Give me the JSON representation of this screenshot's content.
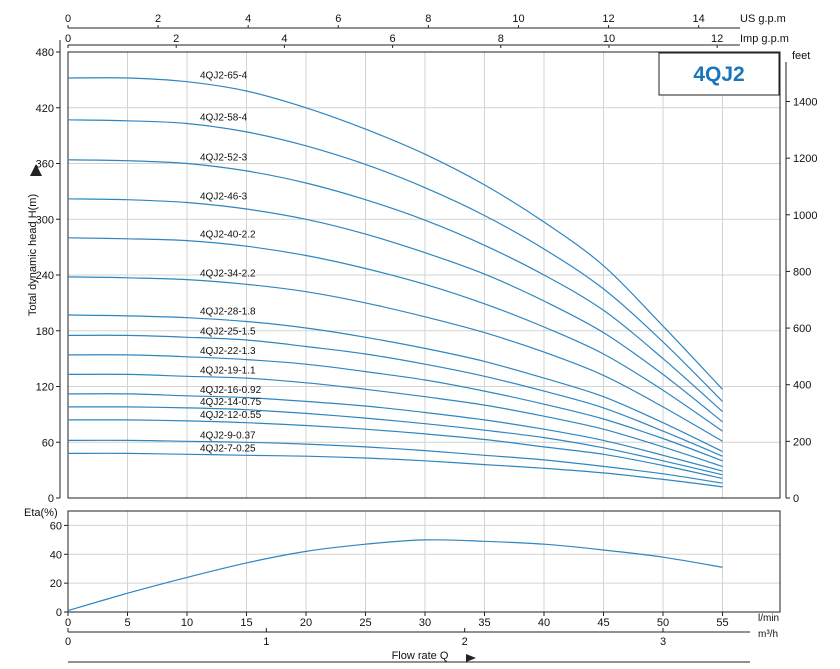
{
  "chart_data": [
    {
      "type": "line",
      "title": "4QJ2",
      "ylabel": "Total dynamic head H(m)",
      "ylabel_right": "feet",
      "xlabel": "Flow rate Q",
      "x_unit_lpm": "l/min",
      "x_unit_m3h": "m³/h",
      "x_unit_usgpm": "US g.p.m",
      "x_unit_impgpm": "Imp g.p.m",
      "xlim": [
        0,
        60
      ],
      "ylim": [
        0,
        480
      ],
      "y_ticks": [
        0,
        60,
        120,
        180,
        240,
        300,
        360,
        420,
        480
      ],
      "y_ticks_feet": [
        0,
        200,
        400,
        600,
        800,
        1000,
        1200,
        1400
      ],
      "x_ticks_lpm": [
        0,
        5,
        10,
        15,
        20,
        25,
        30,
        35,
        40,
        45,
        50,
        55
      ],
      "x_ticks_m3h": [
        0,
        1,
        2,
        3
      ],
      "x_ticks_usgpm": [
        0,
        2,
        4,
        6,
        8,
        10,
        12,
        14
      ],
      "x_ticks_impgpm": [
        0,
        2,
        4,
        6,
        8,
        10,
        12
      ],
      "grid": true,
      "series": [
        {
          "name": "4QJ2-65-4",
          "x": [
            0,
            5,
            10,
            15,
            20,
            25,
            30,
            35,
            40,
            45,
            50,
            55
          ],
          "values": [
            452,
            452,
            448,
            438,
            420,
            397,
            370,
            337,
            297,
            250,
            185,
            117
          ]
        },
        {
          "name": "4QJ2-58-4",
          "x": [
            0,
            5,
            10,
            15,
            20,
            25,
            30,
            35,
            40,
            45,
            50,
            55
          ],
          "values": [
            407,
            406,
            403,
            394,
            379,
            359,
            334,
            304,
            268,
            225,
            168,
            104
          ]
        },
        {
          "name": "4QJ2-52-3",
          "x": [
            0,
            5,
            10,
            15,
            20,
            25,
            30,
            35,
            40,
            45,
            50,
            55
          ],
          "values": [
            364,
            363,
            360,
            352,
            339,
            321,
            299,
            272,
            240,
            202,
            150,
            93
          ]
        },
        {
          "name": "4QJ2-46-3",
          "x": [
            0,
            5,
            10,
            15,
            20,
            25,
            30,
            35,
            40,
            45,
            50,
            55
          ],
          "values": [
            322,
            321,
            318,
            311,
            300,
            284,
            264,
            241,
            212,
            178,
            133,
            82
          ]
        },
        {
          "name": "4QJ2-40-2.2",
          "x": [
            0,
            5,
            10,
            15,
            20,
            25,
            30,
            35,
            40,
            45,
            50,
            55
          ],
          "values": [
            280,
            279,
            277,
            271,
            261,
            247,
            230,
            209,
            184,
            155,
            116,
            72
          ]
        },
        {
          "name": "4QJ2-34-2.2",
          "x": [
            0,
            5,
            10,
            15,
            20,
            25,
            30,
            35,
            40,
            45,
            50,
            55
          ],
          "values": [
            238,
            237,
            235,
            230,
            222,
            210,
            195,
            178,
            157,
            132,
            98,
            61
          ]
        },
        {
          "name": "4QJ2-28-1.8",
          "x": [
            0,
            5,
            10,
            15,
            20,
            25,
            30,
            35,
            40,
            45,
            50,
            55
          ],
          "values": [
            197,
            196,
            194,
            190,
            183,
            173,
            161,
            147,
            129,
            109,
            81,
            50
          ]
        },
        {
          "name": "4QJ2-25-1.5",
          "x": [
            0,
            5,
            10,
            15,
            20,
            25,
            30,
            35,
            40,
            45,
            50,
            55
          ],
          "values": [
            175,
            175,
            173,
            170,
            163,
            155,
            144,
            131,
            115,
            97,
            72,
            45
          ]
        },
        {
          "name": "4QJ2-22-1.3",
          "x": [
            0,
            5,
            10,
            15,
            20,
            25,
            30,
            35,
            40,
            45,
            50,
            55
          ],
          "values": [
            154,
            154,
            152,
            149,
            144,
            136,
            127,
            115,
            101,
            85,
            64,
            40
          ]
        },
        {
          "name": "4QJ2-19-1.1",
          "x": [
            0,
            5,
            10,
            15,
            20,
            25,
            30,
            35,
            40,
            45,
            50,
            55
          ],
          "values": [
            133,
            133,
            131,
            129,
            124,
            117,
            109,
            100,
            88,
            74,
            55,
            34
          ]
        },
        {
          "name": "4QJ2-16-0.92",
          "x": [
            0,
            5,
            10,
            15,
            20,
            25,
            30,
            35,
            40,
            45,
            50,
            55
          ],
          "values": [
            112,
            112,
            110,
            108,
            104,
            99,
            92,
            84,
            74,
            62,
            46,
            29
          ]
        },
        {
          "name": "4QJ2-14-0.75",
          "x": [
            0,
            5,
            10,
            15,
            20,
            25,
            30,
            35,
            40,
            45,
            50,
            55
          ],
          "values": [
            98,
            98,
            97,
            95,
            91,
            86,
            80,
            73,
            65,
            54,
            40,
            25
          ]
        },
        {
          "name": "4QJ2-12-0.55",
          "x": [
            0,
            5,
            10,
            15,
            20,
            25,
            30,
            35,
            40,
            45,
            50,
            55
          ],
          "values": [
            84,
            84,
            83,
            81,
            78,
            74,
            69,
            63,
            55,
            47,
            35,
            21
          ]
        },
        {
          "name": "4QJ2-9-0.37",
          "x": [
            0,
            5,
            10,
            15,
            20,
            25,
            30,
            35,
            40,
            45,
            50,
            55
          ],
          "values": [
            62,
            62,
            61,
            60,
            58,
            55,
            51,
            46,
            41,
            34,
            26,
            16
          ]
        },
        {
          "name": "4QJ2-7-0.25",
          "x": [
            0,
            5,
            10,
            15,
            20,
            25,
            30,
            35,
            40,
            45,
            50,
            55
          ],
          "values": [
            48,
            48,
            47,
            46,
            45,
            43,
            40,
            36,
            32,
            27,
            20,
            12
          ]
        }
      ]
    },
    {
      "type": "line",
      "title": "",
      "ylabel": "Eta(%)",
      "xlabel": "Flow rate Q",
      "xlim": [
        0,
        60
      ],
      "ylim": [
        0,
        70
      ],
      "y_ticks": [
        0,
        20,
        40,
        60
      ],
      "grid": true,
      "series": [
        {
          "name": "",
          "x": [
            0,
            5,
            10,
            15,
            20,
            25,
            30,
            35,
            40,
            45,
            50,
            55
          ],
          "values": [
            1,
            13,
            24,
            34,
            42,
            47,
            50,
            49,
            47,
            43,
            38,
            31
          ]
        }
      ]
    }
  ]
}
